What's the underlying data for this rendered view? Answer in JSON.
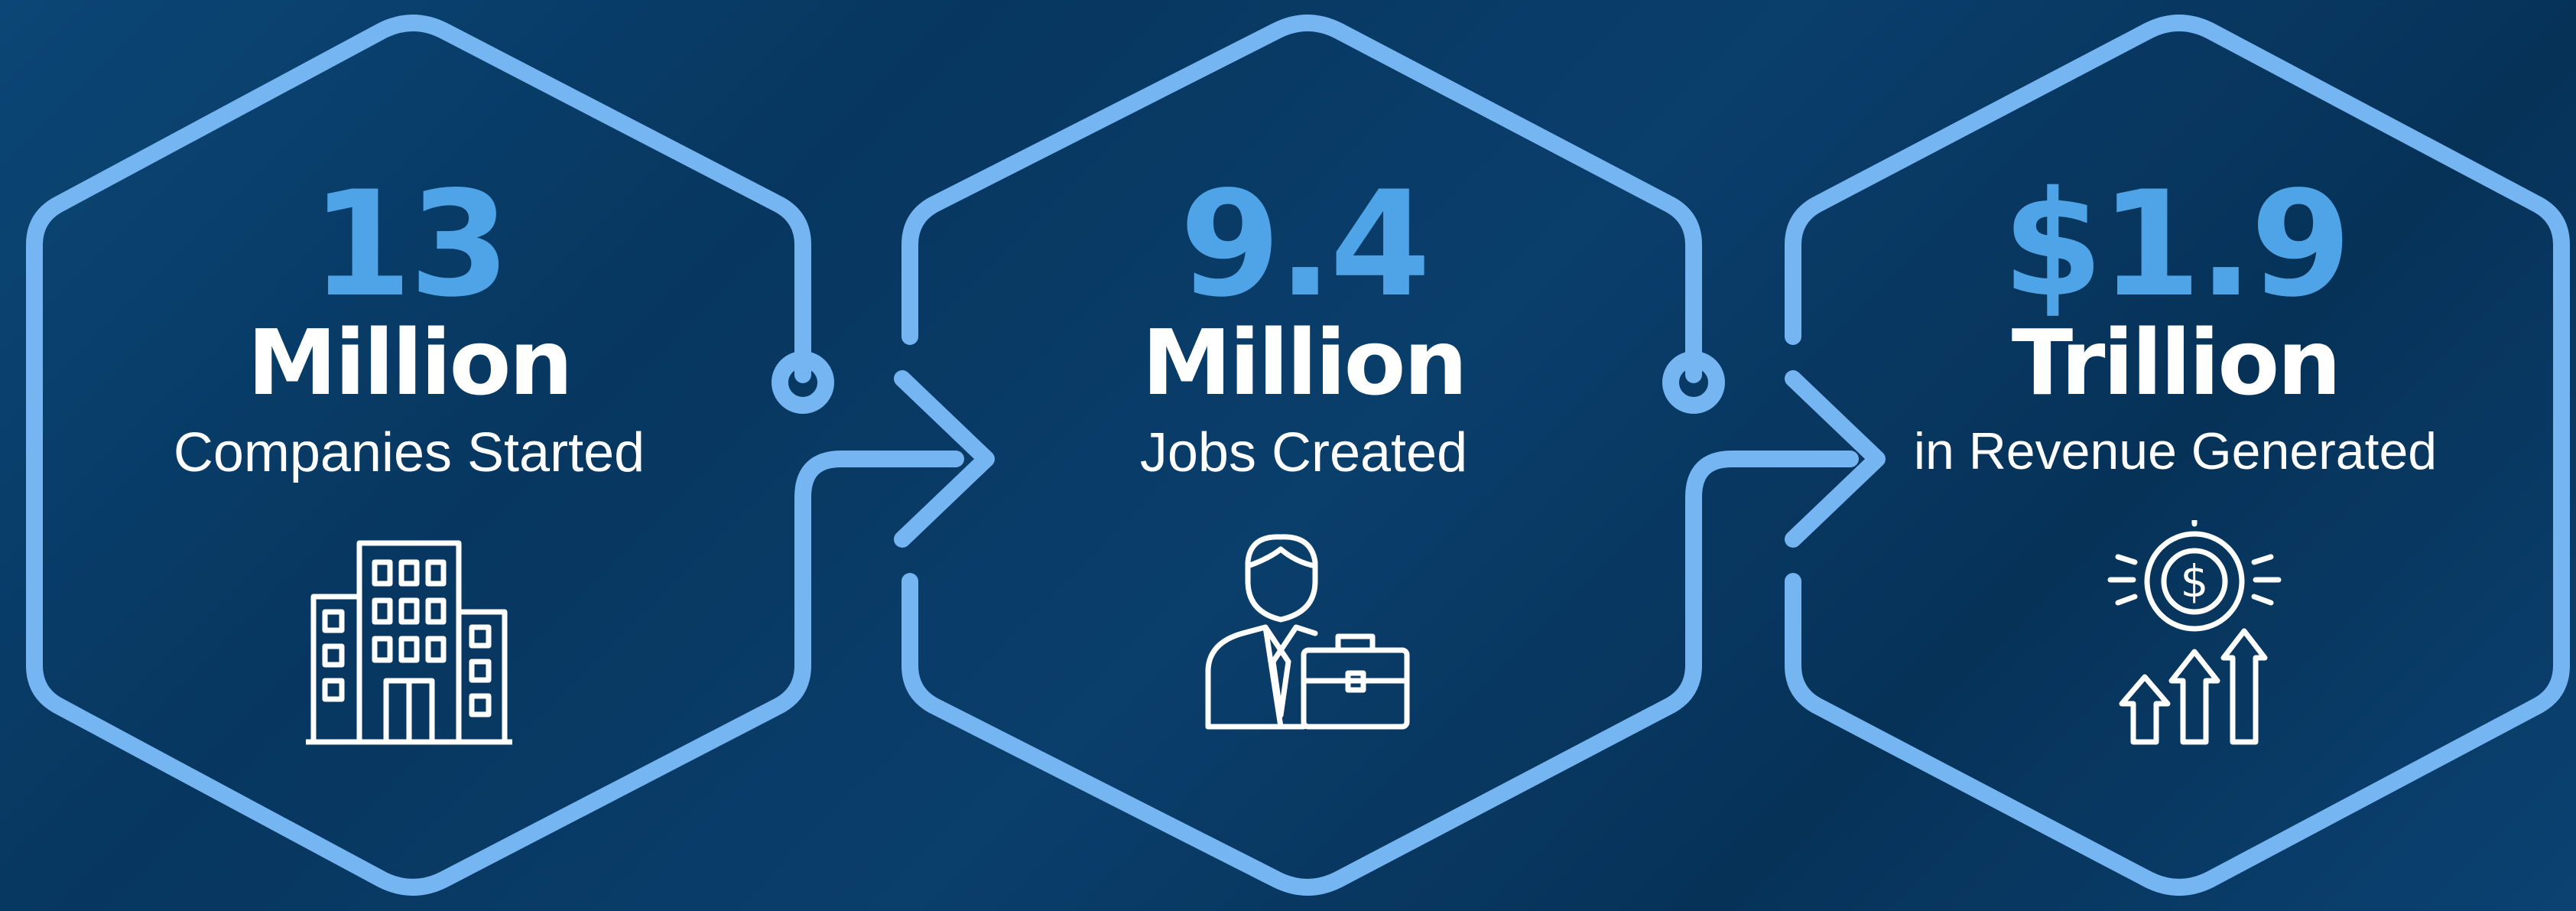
{
  "colors": {
    "background": "#0a3a64",
    "outline": "#75b5f1",
    "number": "#4ea4e6",
    "text": "#ffffff"
  },
  "stats": [
    {
      "number": "13",
      "unit": "Million",
      "caption": "Companies Started",
      "icon": "office-building-icon"
    },
    {
      "number": "9.4",
      "unit": "Million",
      "caption": "Jobs Created",
      "icon": "businessman-briefcase-icon"
    },
    {
      "number": "$1.9",
      "unit": "Trillion",
      "caption": "in Revenue Generated",
      "icon": "revenue-growth-icon"
    }
  ]
}
